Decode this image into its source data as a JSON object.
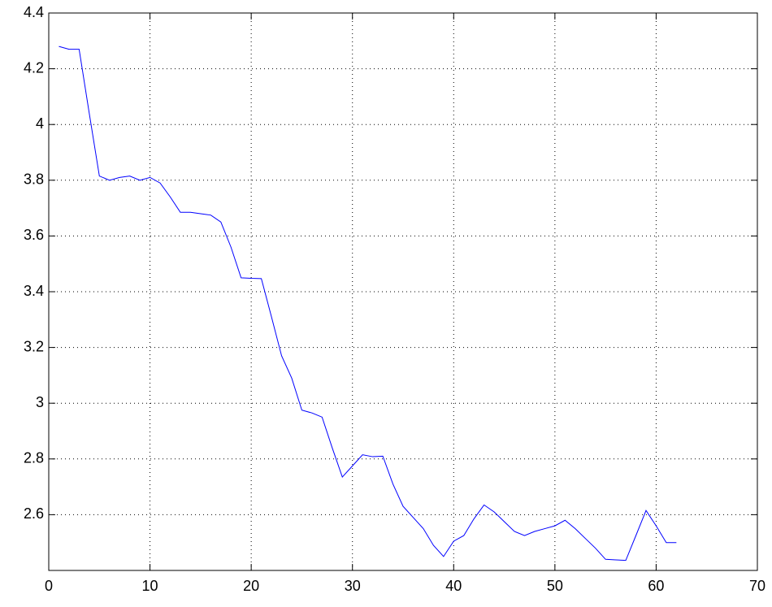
{
  "chart_data": {
    "type": "line",
    "x": [
      1,
      2,
      3,
      4,
      5,
      6,
      7,
      8,
      9,
      10,
      11,
      12,
      13,
      14,
      15,
      16,
      17,
      18,
      19,
      20,
      21,
      22,
      23,
      24,
      25,
      26,
      27,
      28,
      29,
      30,
      31,
      32,
      33,
      34,
      35,
      36,
      37,
      38,
      39,
      40,
      41,
      42,
      43,
      44,
      45,
      46,
      47,
      48,
      49,
      50,
      51,
      52,
      53,
      54,
      55,
      56,
      57,
      58,
      59,
      60,
      61,
      62
    ],
    "series": [
      {
        "color": "#0000ff",
        "values": [
          4.28,
          4.27,
          4.27,
          4.04,
          3.815,
          3.8,
          3.81,
          3.815,
          3.8,
          3.81,
          3.79,
          3.74,
          3.685,
          3.685,
          3.68,
          3.675,
          3.65,
          3.56,
          3.45,
          3.448,
          3.447,
          3.31,
          3.17,
          3.09,
          2.975,
          2.965,
          2.95,
          2.84,
          2.735,
          2.775,
          2.815,
          2.808,
          2.81,
          2.71,
          2.63,
          2.59,
          2.55,
          2.49,
          2.45,
          2.505,
          2.525,
          2.585,
          2.635,
          2.61,
          2.575,
          2.54,
          2.525,
          2.54,
          2.55,
          2.56,
          2.58,
          2.55,
          2.515,
          2.48,
          2.44,
          2.438,
          2.436,
          2.525,
          2.615,
          2.56,
          2.5,
          2.5
        ]
      }
    ],
    "xlim": [
      0,
      70
    ],
    "xticks": [
      0,
      10,
      20,
      30,
      40,
      50,
      60,
      70
    ],
    "ylim": [
      2.4,
      4.4
    ],
    "yticks": [
      2.6,
      2.8,
      3,
      3.2,
      3.4,
      3.6,
      3.8,
      4,
      4.2,
      4.4
    ],
    "grid": true
  }
}
